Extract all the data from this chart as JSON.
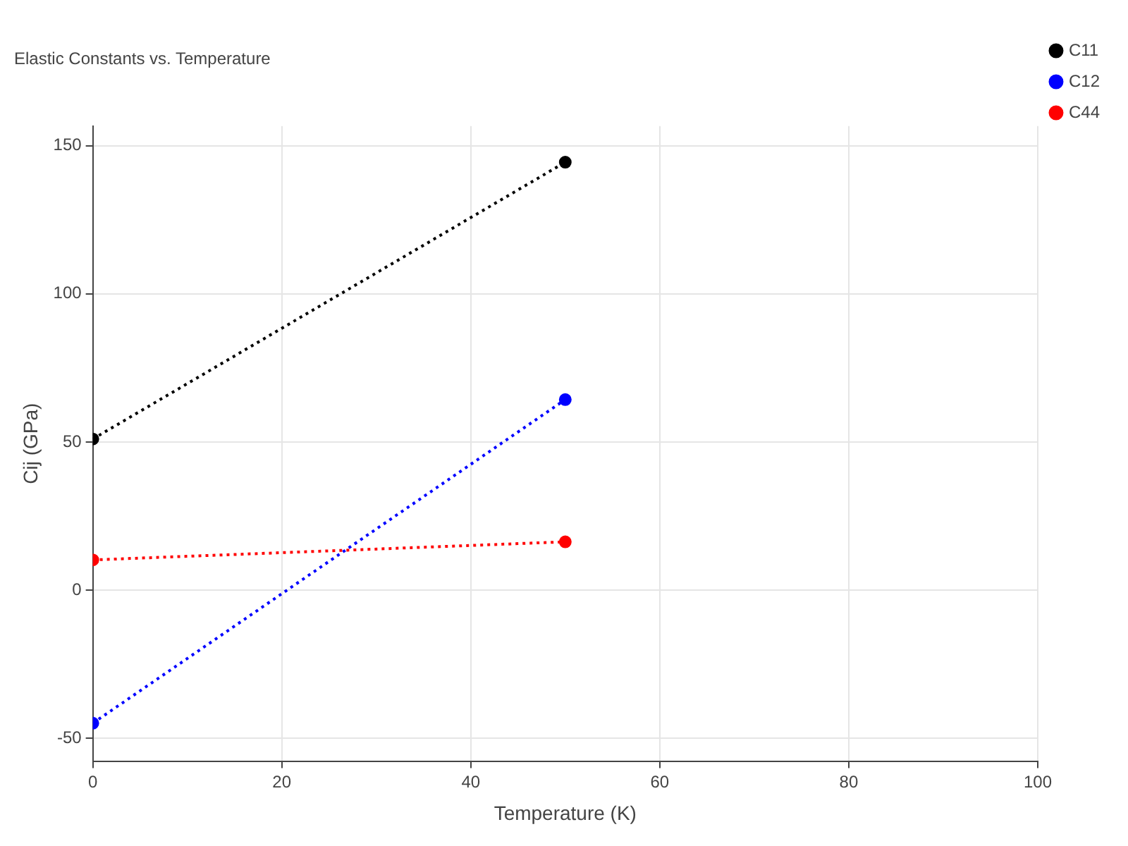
{
  "chart_data": {
    "type": "line",
    "title": "Elastic Constants vs. Temperature",
    "xlabel": "Temperature (K)",
    "ylabel": "Cij (GPa)",
    "x": [
      0,
      50
    ],
    "series": [
      {
        "name": "C11",
        "color": "#000000",
        "values": [
          51,
          144.4
        ]
      },
      {
        "name": "C12",
        "color": "#0000ff",
        "values": [
          -44.9,
          64.3
        ]
      },
      {
        "name": "C44",
        "color": "#ff0000",
        "values": [
          10.2,
          16.3
        ]
      }
    ],
    "xlim": [
      0,
      100
    ],
    "xticks": [
      0,
      20,
      40,
      60,
      80,
      100
    ],
    "ylim": [
      -57.7,
      156.6
    ],
    "yticks": [
      -50,
      0,
      50,
      100,
      150
    ],
    "grid": true,
    "legend": "top right",
    "marker": "circle",
    "line_style": "dotted"
  }
}
